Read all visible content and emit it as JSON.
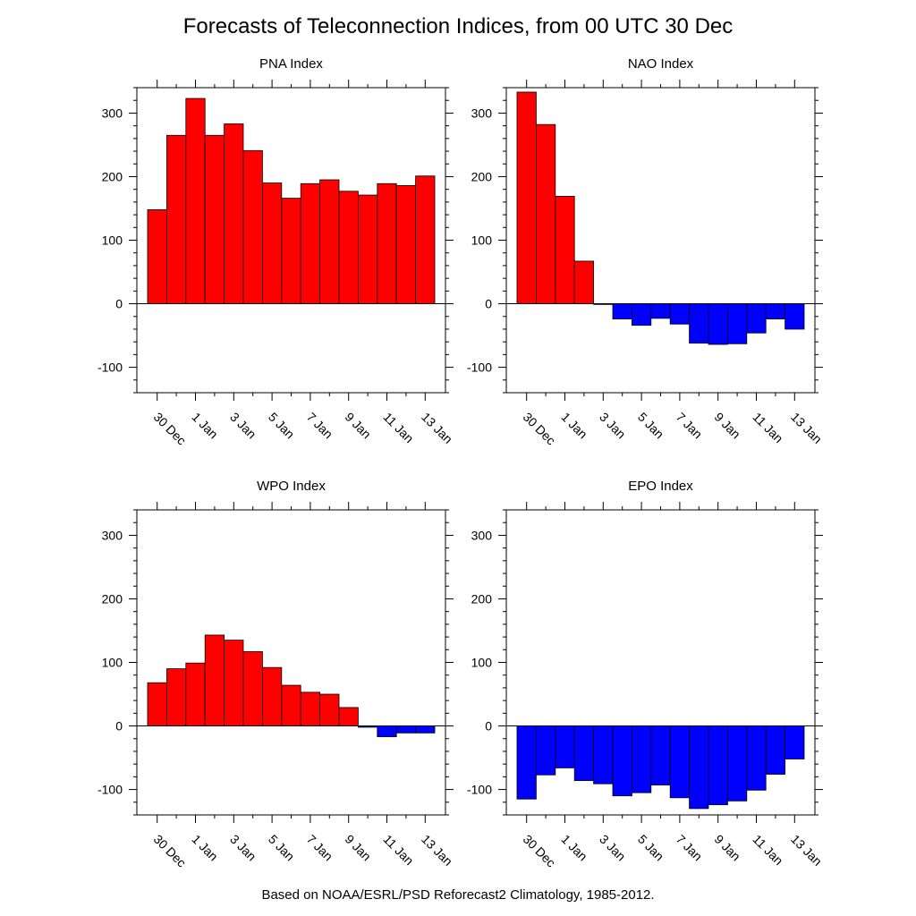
{
  "title": "Forecasts of Teleconnection Indices, from 00 UTC 30 Dec",
  "footer": "Based on NOAA/ESRL/PSD Reforecast2 Climatology, 1985-2012.",
  "colors": {
    "positive": "#ff0000",
    "negative": "#0000ff",
    "outline": "#000000"
  },
  "chart_data": [
    {
      "type": "bar",
      "title": "PNA Index",
      "x_tick_labels": [
        "30 Dec",
        "1 Jan",
        "3 Jan",
        "5 Jan",
        "7 Jan",
        "9 Jan",
        "11 Jan",
        "13 Jan"
      ],
      "y_tick_labels": [
        "-100",
        "0",
        "100",
        "200",
        "300"
      ],
      "ylim": [
        -140,
        340
      ],
      "values": [
        148,
        265,
        323,
        265,
        283,
        241,
        190,
        166,
        189,
        195,
        177,
        171,
        189,
        186,
        201
      ]
    },
    {
      "type": "bar",
      "title": "NAO Index",
      "x_tick_labels": [
        "30 Dec",
        "1 Jan",
        "3 Jan",
        "5 Jan",
        "7 Jan",
        "9 Jan",
        "11 Jan",
        "13 Jan"
      ],
      "y_tick_labels": [
        "-100",
        "0",
        "100",
        "200",
        "300"
      ],
      "ylim": [
        -140,
        340
      ],
      "values": [
        333,
        282,
        169,
        67,
        0,
        -24,
        -34,
        -23,
        -32,
        -62,
        -64,
        -63,
        -46,
        -24,
        -40
      ]
    },
    {
      "type": "bar",
      "title": "WPO Index",
      "x_tick_labels": [
        "30 Dec",
        "1 Jan",
        "3 Jan",
        "5 Jan",
        "7 Jan",
        "9 Jan",
        "11 Jan",
        "13 Jan"
      ],
      "y_tick_labels": [
        "-100",
        "0",
        "100",
        "200",
        "300"
      ],
      "ylim": [
        -140,
        340
      ],
      "values": [
        68,
        90,
        99,
        143,
        135,
        117,
        92,
        64,
        53,
        50,
        29,
        -2,
        -17,
        -11,
        -11
      ]
    },
    {
      "type": "bar",
      "title": "EPO Index",
      "x_tick_labels": [
        "30 Dec",
        "1 Jan",
        "3 Jan",
        "5 Jan",
        "7 Jan",
        "9 Jan",
        "11 Jan",
        "13 Jan"
      ],
      "y_tick_labels": [
        "-100",
        "0",
        "100",
        "200",
        "300"
      ],
      "ylim": [
        -140,
        340
      ],
      "values": [
        -115,
        -77,
        -66,
        -86,
        -91,
        -110,
        -105,
        -93,
        -113,
        -130,
        -124,
        -118,
        -101,
        -76,
        -52
      ]
    }
  ]
}
